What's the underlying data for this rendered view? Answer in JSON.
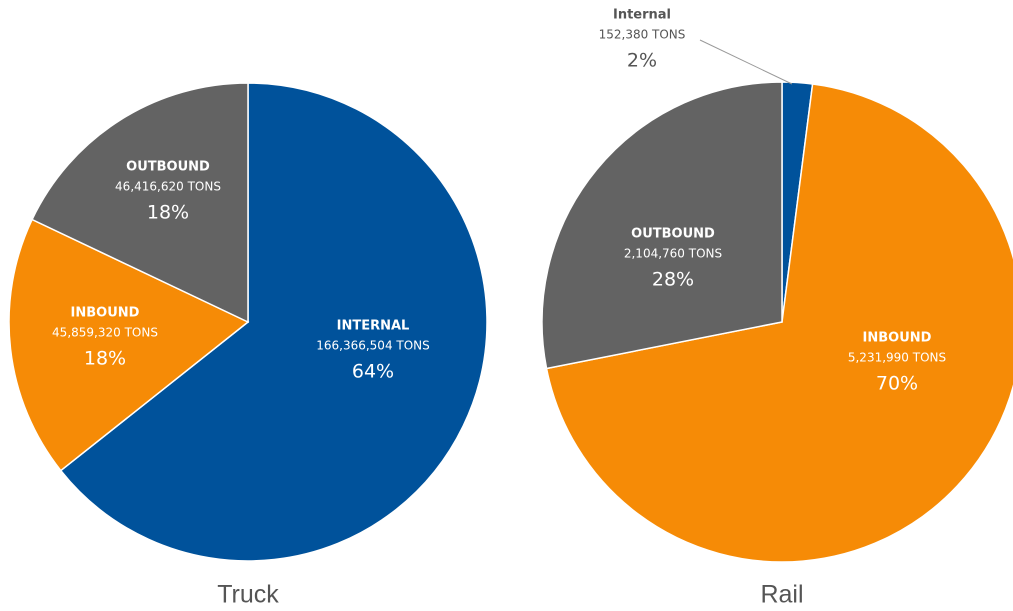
{
  "chart_data": [
    {
      "type": "pie",
      "title": "Truck",
      "categories": [
        "INTERNAL",
        "INBOUND",
        "OUTBOUND"
      ],
      "values": [
        64,
        18,
        18
      ],
      "value_labels": [
        "64%",
        "18%",
        "18%"
      ],
      "tons": [
        166366504,
        45859320,
        46416620
      ],
      "tons_labels": [
        "166,366,504 TONS",
        "45,859,320 TONS",
        "46,416,620 TONS"
      ],
      "colors": [
        "#00529b",
        "#f68b06",
        "#636363"
      ]
    },
    {
      "type": "pie",
      "title": "Rail",
      "categories": [
        "Internal",
        "INBOUND",
        "OUTBOUND"
      ],
      "values": [
        2,
        70,
        28
      ],
      "value_labels": [
        "2%",
        "70%",
        "28%"
      ],
      "tons": [
        152380,
        5231990,
        2104760
      ],
      "tons_labels": [
        "152,380 TONS",
        "5,231,990 TONS",
        "2,104,760 TONS"
      ],
      "colors": [
        "#00529b",
        "#f68b06",
        "#636363"
      ]
    }
  ]
}
